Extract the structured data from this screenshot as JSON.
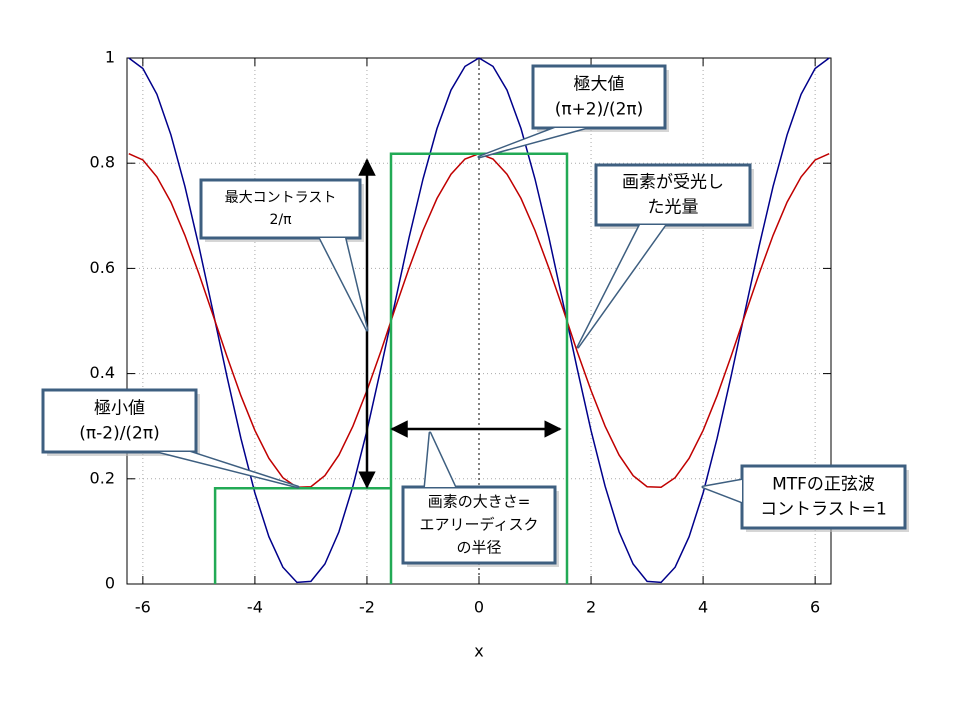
{
  "chart_data": {
    "type": "line",
    "xlabel": "x",
    "xlim": [
      -6.283,
      6.283
    ],
    "ylim": [
      0,
      1
    ],
    "xticks": [
      -6,
      -4,
      -2,
      0,
      2,
      4,
      6
    ],
    "yticks": [
      0,
      0.2,
      0.4,
      0.6,
      0.8,
      1
    ],
    "grid": true,
    "series": [
      {
        "color": "#00008b",
        "x": [
          -6.25,
          -6,
          -5.75,
          -5.5,
          -5.25,
          -5,
          -4.75,
          -4.5,
          -4.25,
          -4,
          -3.75,
          -3.5,
          -3.25,
          -3,
          -2.75,
          -2.5,
          -2.25,
          -2,
          -1.75,
          -1.5,
          -1.25,
          -1,
          -0.75,
          -0.5,
          -0.25,
          0,
          0.25,
          0.5,
          0.75,
          1,
          1.25,
          1.5,
          1.75,
          2,
          2.25,
          2.5,
          2.75,
          3,
          3.25,
          3.5,
          3.75,
          4,
          4.25,
          4.5,
          4.75,
          5,
          5.25,
          5.5,
          5.75,
          6,
          6.25
        ],
        "values": [
          1.0,
          0.98,
          0.931,
          0.854,
          0.756,
          0.642,
          0.519,
          0.395,
          0.277,
          0.173,
          0.09,
          0.032,
          0.003,
          0.005,
          0.038,
          0.099,
          0.186,
          0.292,
          0.411,
          0.535,
          0.658,
          0.77,
          0.866,
          0.939,
          0.984,
          1.0,
          0.984,
          0.939,
          0.866,
          0.77,
          0.658,
          0.535,
          0.411,
          0.292,
          0.186,
          0.099,
          0.038,
          0.005,
          0.003,
          0.032,
          0.09,
          0.173,
          0.277,
          0.395,
          0.519,
          0.642,
          0.756,
          0.854,
          0.931,
          0.98,
          1.0
        ]
      },
      {
        "color": "#c00000",
        "x": [
          -6.25,
          -6,
          -5.75,
          -5.5,
          -5.25,
          -5,
          -4.75,
          -4.5,
          -4.25,
          -4,
          -3.75,
          -3.5,
          -3.25,
          -3,
          -2.75,
          -2.5,
          -2.25,
          -2,
          -1.75,
          -1.5,
          -1.25,
          -1,
          -0.75,
          -0.5,
          -0.25,
          0,
          0.25,
          0.5,
          0.75,
          1,
          1.25,
          1.5,
          1.75,
          2,
          2.25,
          2.5,
          2.75,
          3,
          3.25,
          3.5,
          3.75,
          4,
          4.25,
          4.5,
          4.75,
          5,
          5.25,
          5.5,
          5.75,
          6,
          6.25
        ],
        "values": [
          0.818,
          0.806,
          0.774,
          0.726,
          0.663,
          0.59,
          0.512,
          0.433,
          0.358,
          0.292,
          0.239,
          0.202,
          0.184,
          0.185,
          0.206,
          0.245,
          0.3,
          0.368,
          0.443,
          0.523,
          0.6,
          0.672,
          0.733,
          0.779,
          0.808,
          0.818,
          0.808,
          0.779,
          0.733,
          0.672,
          0.6,
          0.523,
          0.443,
          0.368,
          0.3,
          0.245,
          0.206,
          0.185,
          0.184,
          0.202,
          0.239,
          0.292,
          0.358,
          0.433,
          0.512,
          0.59,
          0.663,
          0.726,
          0.774,
          0.806,
          0.818
        ]
      },
      {
        "color": "#22aa55",
        "x": [
          -4.71,
          -4.71,
          -1.57,
          -1.57,
          -1.57,
          1.57,
          1.57
        ],
        "values": [
          0,
          0.182,
          0.182,
          0,
          0.818,
          0.818,
          0
        ]
      }
    ],
    "annotations": [
      {
        "lines": [
          "極大値",
          "(π+2)/(2π)"
        ]
      },
      {
        "lines": [
          "最大コントラスト",
          "2/π"
        ]
      },
      {
        "lines": [
          "画素が受光し",
          "た光量"
        ]
      },
      {
        "lines": [
          "極小値",
          "(π-2)/(2π)"
        ]
      },
      {
        "lines": [
          "画素の大きさ=",
          "エアリーディスク",
          "の半径"
        ]
      },
      {
        "lines": [
          "MTFの正弦波",
          "コントラスト=1"
        ]
      }
    ]
  }
}
